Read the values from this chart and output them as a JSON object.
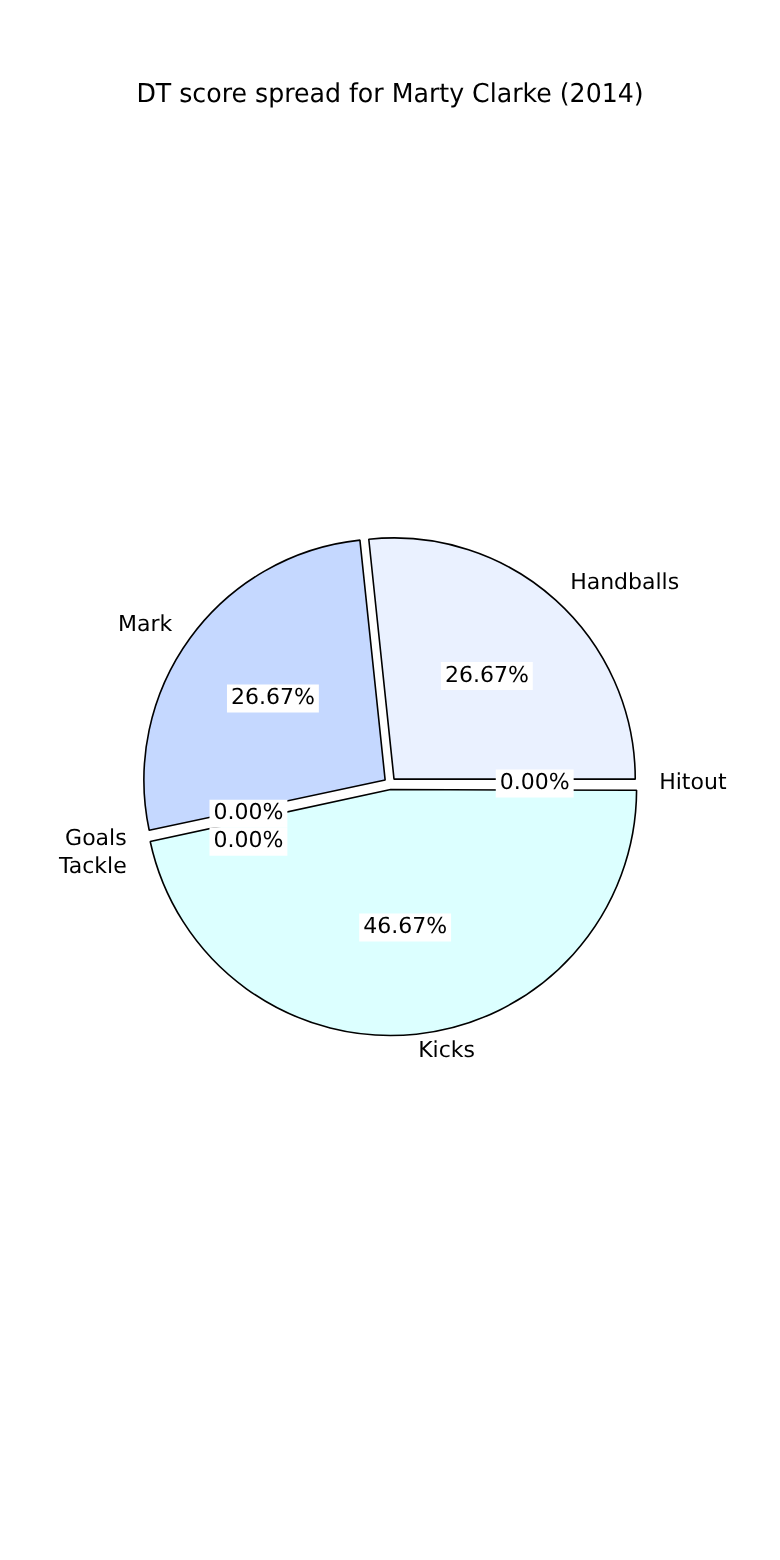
{
  "chart_data": {
    "type": "pie",
    "title": "DT score spread for Marty Clarke (2014)",
    "categories": [
      "Hitout",
      "Kicks",
      "Goals",
      "Tackle",
      "Mark",
      "Handballs"
    ],
    "values": [
      0,
      46.67,
      0,
      0,
      26.67,
      26.67
    ],
    "colors": [
      "#f2f2f2",
      "#dcffff",
      "#f2f2f2",
      "#f2f2f2",
      "#c5d8ff",
      "#eaf1ff"
    ],
    "value_labels": [
      "0.00%",
      "46.67%",
      "0.00%",
      "0.00%",
      "26.67%",
      "26.67%"
    ],
    "legend": false
  }
}
